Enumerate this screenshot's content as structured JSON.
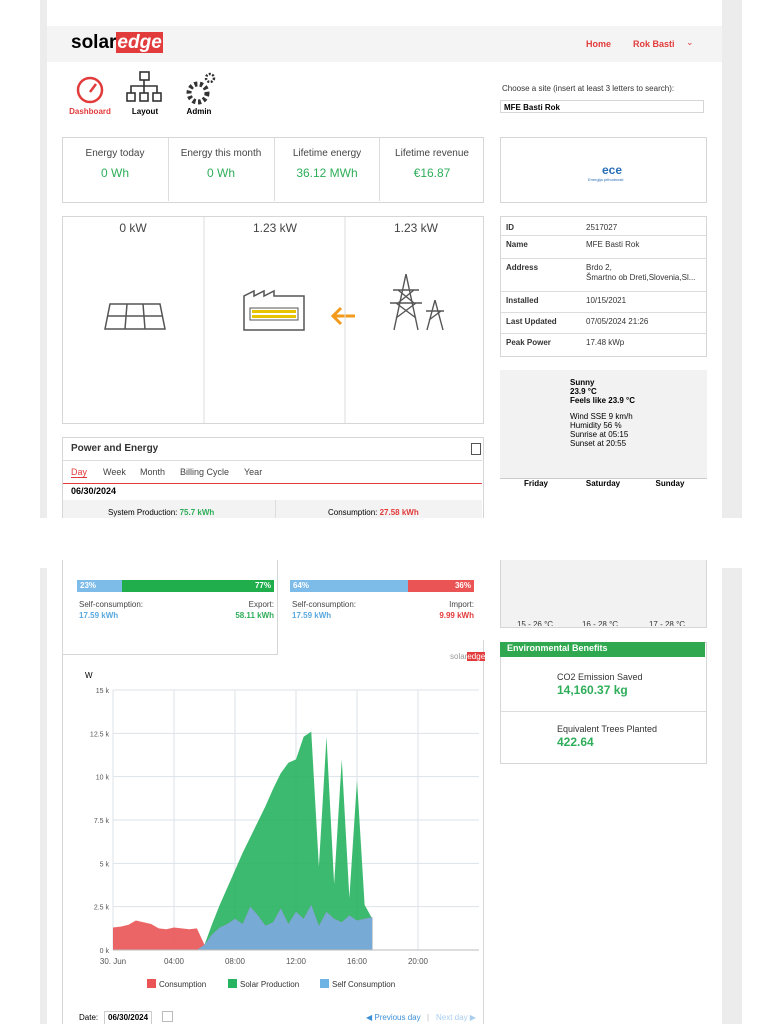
{
  "header": {
    "logo_left": "solar",
    "logo_right": "edge",
    "home": "Home",
    "user": "Rok Basti"
  },
  "nav": {
    "items": [
      "Dashboard",
      "Layout",
      "Admin"
    ]
  },
  "site_search": {
    "label": "Choose a site (insert at least 3 letters to search):",
    "value": "MFE Basti Rok"
  },
  "stats": [
    {
      "label": "Energy today",
      "value": "0 Wh"
    },
    {
      "label": "Energy this month",
      "value": "0 Wh"
    },
    {
      "label": "Lifetime energy",
      "value": "36.12 MWh"
    },
    {
      "label": "Lifetime revenue",
      "value": "€16.87"
    }
  ],
  "installer_logo": {
    "name": "ece",
    "tagline": "Energija prihodnosti"
  },
  "flow": {
    "values": [
      "0 kW",
      "1.23 kW",
      "1.23 kW"
    ]
  },
  "site_info": {
    "rows": [
      [
        "ID",
        "2517027"
      ],
      [
        "Name",
        "MFE Basti Rok"
      ],
      [
        "Address",
        "Brdo 2,",
        "Šmartno ob Dreti,Slovenia,Sl..."
      ],
      [
        "Installed",
        "10/15/2021"
      ],
      [
        "Last Updated",
        "07/05/2024 21:26"
      ],
      [
        "Peak Power",
        "17.48 kWp"
      ]
    ]
  },
  "weather": {
    "condition": "Sunny",
    "temp": "23.9 °C",
    "feels": "Feels like 23.9 °C",
    "details": [
      "Wind SSE 9 km/h",
      "Humidity 56 %",
      "Sunrise at 05:15",
      "Sunset at 20:55"
    ],
    "days": [
      "Friday",
      "Saturday",
      "Sunday"
    ],
    "ranges": [
      "15 - 26 °C",
      "16 - 28 °C",
      "17 - 28 °C"
    ]
  },
  "power_energy": {
    "title": "Power and Energy",
    "tabs": [
      "Day",
      "Week",
      "Month",
      "Billing Cycle",
      "Year"
    ],
    "date": "06/30/2024",
    "production_label": "System Production:",
    "production_value": "75.7 kWh",
    "consumption_label": "Consumption:",
    "consumption_value": "27.58 kWh"
  },
  "balance": [
    {
      "values": [
        23,
        77
      ],
      "value_labels": [
        "23%",
        "77%"
      ],
      "colors": [
        "#7dbbe8",
        "#1fae4b"
      ],
      "left_label": "Self-consumption:",
      "left_value": "17.59 kWh",
      "right_label": "Export:",
      "right_value": "58.11 kWh"
    },
    {
      "values": [
        64,
        36
      ],
      "value_labels": [
        "64%",
        "36%"
      ],
      "colors": [
        "#7dbbe8",
        "#ea5455"
      ],
      "left_label": "Self-consumption:",
      "left_value": "17.59 kWh",
      "right_label": "Import:",
      "right_value": "9.99 kWh"
    }
  ],
  "benefits": {
    "title": "Environmental Benefits",
    "items": [
      {
        "label": "CO2 Emission Saved",
        "value": "14,160.37 kg"
      },
      {
        "label": "Equivalent Trees Planted",
        "value": "422.64"
      }
    ]
  },
  "chart_data": {
    "type": "area",
    "y_label": "W",
    "watermark_left": "solar",
    "watermark_right": "edge",
    "x": [
      0,
      0.5,
      1,
      1.5,
      2,
      2.5,
      3,
      3.5,
      4,
      4.5,
      5,
      5.5,
      6,
      6.5,
      7,
      7.5,
      8,
      8.5,
      9,
      9.5,
      10,
      10.5,
      11,
      11.5,
      12,
      12.5,
      13,
      13.5,
      14,
      14.5,
      15,
      15.5,
      16,
      16.5,
      17
    ],
    "series": [
      {
        "name": "Solar Production",
        "color": "#27b35f",
        "values": [
          0,
          0,
          0,
          0,
          0,
          0,
          0,
          0,
          0,
          0,
          0,
          0,
          300,
          1500,
          2600,
          3600,
          4600,
          5600,
          6500,
          7400,
          8300,
          9300,
          10200,
          10800,
          11000,
          12300,
          12600,
          4800,
          12300,
          3800,
          11000,
          3000,
          9800,
          2600,
          1800
        ]
      },
      {
        "name": "Consumption",
        "color": "#ea5455",
        "values": [
          1300,
          1350,
          1450,
          1700,
          1600,
          1500,
          1250,
          1200,
          1300,
          1250,
          1200,
          1250,
          300,
          900,
          1300,
          1500,
          1800,
          1500,
          2500,
          2000,
          1400,
          1600,
          2400,
          1500,
          2200,
          1800,
          2600,
          1400,
          2200,
          1800,
          1600,
          2000,
          1700,
          1800,
          1900
        ]
      },
      {
        "name": "Self Consumption",
        "color": "#6db3e4",
        "values": [
          0,
          0,
          0,
          0,
          0,
          0,
          0,
          0,
          0,
          0,
          0,
          0,
          300,
          900,
          1300,
          1500,
          1800,
          1500,
          2500,
          2000,
          1400,
          1600,
          2400,
          1500,
          2200,
          1800,
          2600,
          1400,
          2200,
          1800,
          1600,
          2000,
          1700,
          1800,
          1900
        ]
      }
    ],
    "legend_order": [
      1,
      0,
      2
    ],
    "xlim": [
      0,
      24
    ],
    "xticks": [
      {
        "value": 0,
        "label": "30. Jun"
      },
      {
        "value": 4,
        "label": "04:00"
      },
      {
        "value": 8,
        "label": "08:00"
      },
      {
        "value": 12,
        "label": "12:00"
      },
      {
        "value": 16,
        "label": "16:00"
      },
      {
        "value": 20,
        "label": "20:00"
      }
    ],
    "ylim": [
      0,
      15000
    ],
    "yticks": [
      {
        "value": 0,
        "label": "0 k"
      },
      {
        "value": 2500,
        "label": "2.5 k"
      },
      {
        "value": 5000,
        "label": "5 k"
      },
      {
        "value": 7500,
        "label": "7.5 k"
      },
      {
        "value": 10000,
        "label": "10 k"
      },
      {
        "value": 12500,
        "label": "12.5 k"
      },
      {
        "value": 15000,
        "label": "15 k"
      }
    ],
    "grid": true
  },
  "footer": {
    "date_label": "Date:",
    "date_value": "06/30/2024",
    "prev": "Previous day",
    "separator": "|",
    "next": "Next day"
  }
}
